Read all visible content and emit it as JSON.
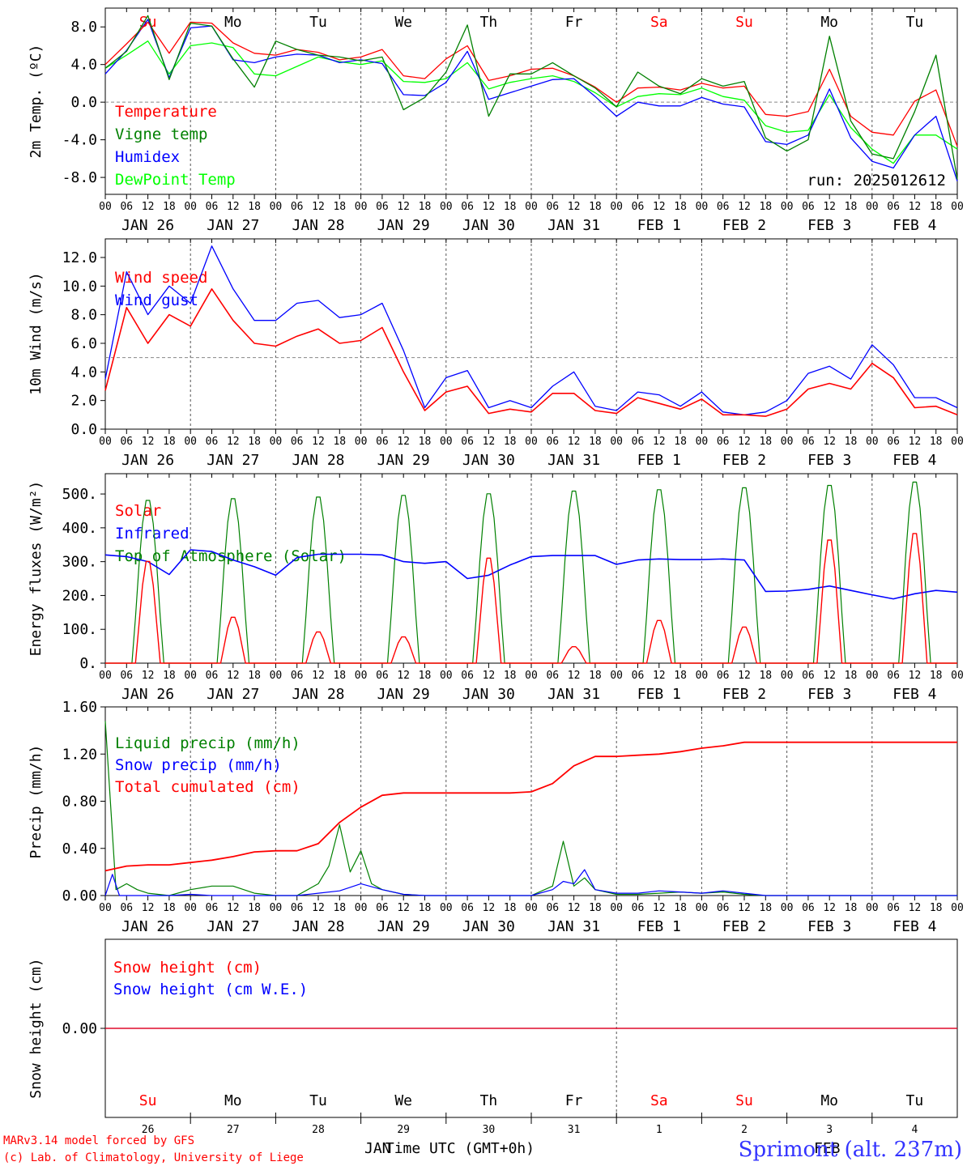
{
  "colors": {
    "red": "#ff0000",
    "green": "#008000",
    "blue": "#0000ff",
    "lime": "#00ff00",
    "grid": "#555555",
    "zero": "#888888"
  },
  "weekdays": [
    {
      "label": "Su",
      "color": "#ff0000"
    },
    {
      "label": "Mo",
      "color": "#000000"
    },
    {
      "label": "Tu",
      "color": "#000000"
    },
    {
      "label": "We",
      "color": "#000000"
    },
    {
      "label": "Th",
      "color": "#000000"
    },
    {
      "label": "Fr",
      "color": "#000000"
    },
    {
      "label": "Sa",
      "color": "#ff0000"
    },
    {
      "label": "Su",
      "color": "#ff0000"
    },
    {
      "label": "Mo",
      "color": "#000000"
    },
    {
      "label": "Tu",
      "color": "#000000"
    }
  ],
  "dates": [
    "JAN 26",
    "JAN 27",
    "JAN 28",
    "JAN 29",
    "JAN 30",
    "JAN 31",
    "FEB  1",
    "FEB  2",
    "FEB  3",
    "FEB  4"
  ],
  "hour_ticks": [
    "00",
    "06",
    "12",
    "18"
  ],
  "bottom": {
    "day_numbers": [
      "26",
      "27",
      "28",
      "29",
      "30",
      "31",
      "1",
      "2",
      "3",
      "4"
    ],
    "month_left": "JAN",
    "month_right": "FEB",
    "xlabel": "Time UTC (GMT+0h)",
    "footer_line1": "MARv3.14 model forced by GFS",
    "footer_line2": "(c) Lab. of Climatology, University of Liege",
    "station": "Sprimont (alt. 237m)"
  },
  "chart_data": [
    {
      "type": "line",
      "ylabel": "2m Temp. (ºC)",
      "ylim": [
        -9.8,
        10.0
      ],
      "yticks": [
        {
          "v": 8,
          "t": "8.0"
        },
        {
          "v": 4,
          "t": "4.0"
        },
        {
          "v": 0,
          "t": "0.0"
        },
        {
          "v": -4,
          "t": "-4.0"
        },
        {
          "v": -8,
          "t": "-8.0"
        }
      ],
      "ref_line": 0,
      "annotation": "run: 2025012612",
      "x_hours": [
        0,
        6,
        12,
        18,
        24,
        30,
        36,
        42,
        48,
        54,
        60,
        66,
        72,
        78,
        84,
        90,
        96,
        102,
        108,
        114,
        120,
        126,
        132,
        138,
        144,
        150,
        156,
        162,
        168,
        174,
        180,
        186,
        192,
        198,
        204,
        210,
        216,
        222,
        228,
        234,
        240
      ],
      "series": [
        {
          "name": "Temperature",
          "color": "#ff0000",
          "values": [
            4.0,
            6.2,
            8.5,
            5.2,
            8.5,
            8.4,
            6.3,
            5.2,
            5.0,
            5.6,
            5.3,
            4.5,
            4.8,
            5.6,
            2.8,
            2.5,
            4.6,
            6.0,
            2.3,
            2.8,
            3.5,
            3.6,
            2.8,
            1.6,
            0.0,
            1.5,
            1.6,
            1.3,
            2.0,
            1.5,
            1.7,
            -1.3,
            -1.5,
            -1.0,
            3.5,
            -1.5,
            -3.2,
            -3.5,
            0.1,
            1.3,
            -4.7
          ]
        },
        {
          "name": "Vigne temp",
          "color": "#008000",
          "values": [
            3.6,
            5.4,
            9.2,
            2.4,
            8.4,
            8.1,
            4.6,
            1.6,
            6.5,
            5.6,
            5.0,
            4.8,
            4.4,
            4.8,
            -0.8,
            0.5,
            3.2,
            8.2,
            -1.5,
            3.0,
            3.0,
            4.2,
            2.8,
            1.5,
            -0.5,
            3.2,
            1.7,
            0.9,
            2.5,
            1.7,
            2.2,
            -3.8,
            -5.2,
            -4.0,
            7.0,
            -2.0,
            -5.5,
            -6.0,
            -1.0,
            5.0,
            -8.2
          ]
        },
        {
          "name": "Humidex",
          "color": "#0000ff",
          "values": [
            3.0,
            5.5,
            8.8,
            2.6,
            7.9,
            8.1,
            4.5,
            4.2,
            4.8,
            5.1,
            5.0,
            4.2,
            4.5,
            4.1,
            0.8,
            0.7,
            2.1,
            5.4,
            0.3,
            1.0,
            1.7,
            2.4,
            2.5,
            0.6,
            -1.5,
            0.0,
            -0.4,
            -0.4,
            0.5,
            -0.2,
            -0.5,
            -4.2,
            -4.5,
            -3.5,
            1.4,
            -3.8,
            -6.3,
            -7.0,
            -3.5,
            -1.5,
            -8.4
          ]
        },
        {
          "name": "DewPoint Temp",
          "color": "#00ff00",
          "values": [
            3.6,
            5.0,
            6.5,
            3.0,
            6.0,
            6.3,
            5.8,
            3.0,
            2.8,
            3.8,
            4.8,
            4.3,
            4.0,
            4.4,
            2.2,
            2.1,
            2.5,
            4.2,
            1.4,
            2.1,
            2.5,
            2.8,
            2.2,
            1.0,
            -0.5,
            0.6,
            0.9,
            0.8,
            1.5,
            0.6,
            0.2,
            -2.5,
            -3.2,
            -3.0,
            0.8,
            -2.7,
            -5.0,
            -6.5,
            -3.5,
            -3.5,
            -5.0
          ]
        }
      ]
    },
    {
      "type": "line",
      "ylabel": "10m Wind (m/s)",
      "ylim": [
        0,
        13.3
      ],
      "yticks": [
        {
          "v": 12,
          "t": "12.0"
        },
        {
          "v": 10,
          "t": "10.0"
        },
        {
          "v": 8,
          "t": "8.0"
        },
        {
          "v": 6,
          "t": "6.0"
        },
        {
          "v": 4,
          "t": "4.0"
        },
        {
          "v": 2,
          "t": "2.0"
        },
        {
          "v": 0,
          "t": "0.0"
        }
      ],
      "ref_line": 5,
      "x_hours": [
        0,
        6,
        12,
        18,
        24,
        30,
        36,
        42,
        48,
        54,
        60,
        66,
        72,
        78,
        84,
        90,
        96,
        102,
        108,
        114,
        120,
        126,
        132,
        138,
        144,
        150,
        156,
        162,
        168,
        174,
        180,
        186,
        192,
        198,
        204,
        210,
        216,
        222,
        228,
        234,
        240
      ],
      "series": [
        {
          "name": "Wind speed",
          "color": "#ff0000",
          "values": [
            2.7,
            8.5,
            6.0,
            8.0,
            7.2,
            9.8,
            7.6,
            6.0,
            5.8,
            6.5,
            7.0,
            6.0,
            6.2,
            7.1,
            4.0,
            1.3,
            2.6,
            3.0,
            1.1,
            1.4,
            1.2,
            2.5,
            2.5,
            1.3,
            1.1,
            2.2,
            1.8,
            1.4,
            2.1,
            1.0,
            1.0,
            0.9,
            1.4,
            2.8,
            3.2,
            2.8,
            4.6,
            3.6,
            1.5,
            1.6,
            1.0
          ]
        },
        {
          "name": "Wind gust",
          "color": "#0000ff",
          "values": [
            3.5,
            11.0,
            8.0,
            10.0,
            8.8,
            12.8,
            9.8,
            7.6,
            7.6,
            8.8,
            9.0,
            7.8,
            8.0,
            8.8,
            5.5,
            1.5,
            3.6,
            4.1,
            1.5,
            2.0,
            1.5,
            3.0,
            4.0,
            1.6,
            1.3,
            2.6,
            2.4,
            1.6,
            2.6,
            1.2,
            1.0,
            1.2,
            2.0,
            3.9,
            4.4,
            3.5,
            5.9,
            4.5,
            2.2,
            2.2,
            1.5
          ]
        }
      ]
    },
    {
      "type": "line",
      "ylabel": "Energy fluxes (W/m²)",
      "ylim": [
        0,
        560
      ],
      "yticks": [
        {
          "v": 500,
          "t": "500."
        },
        {
          "v": 400,
          "t": "400."
        },
        {
          "v": 300,
          "t": "300."
        },
        {
          "v": 200,
          "t": "200."
        },
        {
          "v": 100,
          "t": "100."
        },
        {
          "v": 0,
          "t": "0."
        }
      ],
      "tod_peaks": [
        490,
        495,
        500,
        505,
        510,
        518,
        522,
        528,
        535,
        545
      ],
      "solar_peaks": [
        310,
        140,
        95,
        80,
        320,
        50,
        130,
        110,
        375,
        395
      ],
      "series": [
        {
          "name": "Solar",
          "color": "#ff0000"
        },
        {
          "name": "Infrared",
          "color": "#0000ff",
          "x_hours": [
            0,
            6,
            12,
            18,
            24,
            30,
            36,
            42,
            48,
            54,
            60,
            66,
            72,
            78,
            84,
            90,
            96,
            102,
            108,
            114,
            120,
            126,
            132,
            138,
            144,
            150,
            156,
            162,
            168,
            174,
            180,
            186,
            192,
            198,
            204,
            210,
            216,
            222,
            228,
            234,
            240
          ],
          "values": [
            320,
            315,
            300,
            262,
            335,
            330,
            305,
            285,
            260,
            312,
            322,
            322,
            322,
            320,
            300,
            295,
            300,
            250,
            260,
            290,
            315,
            318,
            318,
            318,
            292,
            305,
            308,
            306,
            306,
            308,
            305,
            212,
            213,
            218,
            228,
            215,
            202,
            190,
            205,
            215,
            210
          ]
        },
        {
          "name": "Top of Atmosphere (Solar)",
          "color": "#008000"
        }
      ]
    },
    {
      "type": "line",
      "ylabel": "Precip (mm/h)",
      "ylim": [
        0,
        1.6
      ],
      "yticks": [
        {
          "v": 1.6,
          "t": "1.60"
        },
        {
          "v": 1.2,
          "t": "1.20"
        },
        {
          "v": 0.8,
          "t": "0.80"
        },
        {
          "v": 0.4,
          "t": "0.40"
        },
        {
          "v": 0,
          "t": "0.00"
        }
      ],
      "series": [
        {
          "name": "Liquid precip (mm/h)",
          "color": "#008000",
          "x_hours": [
            0,
            3,
            6,
            9,
            12,
            18,
            24,
            30,
            36,
            42,
            48,
            54,
            60,
            63,
            66,
            69,
            72,
            75,
            78,
            84,
            90,
            96,
            102,
            108,
            114,
            120,
            126,
            129,
            132,
            135,
            138,
            144,
            150,
            156,
            162,
            168,
            174,
            180,
            186,
            192,
            198,
            204,
            210,
            216,
            222,
            228,
            234,
            240
          ],
          "values": [
            1.48,
            0.05,
            0.1,
            0.05,
            0.02,
            0.0,
            0.05,
            0.08,
            0.08,
            0.02,
            0.0,
            0.0,
            0.1,
            0.25,
            0.6,
            0.2,
            0.38,
            0.1,
            0.05,
            0.01,
            0.0,
            0.0,
            0.0,
            0.0,
            0.0,
            0.0,
            0.08,
            0.46,
            0.08,
            0.15,
            0.05,
            0.01,
            0.01,
            0.02,
            0.03,
            0.02,
            0.03,
            0.01,
            0.0,
            0.0,
            0.0,
            0.0,
            0.0,
            0.0,
            0.0,
            0.0,
            0.0,
            0.0
          ]
        },
        {
          "name": "Snow precip (mm/h)",
          "color": "#0000ff",
          "x_hours": [
            0,
            2,
            4,
            6,
            12,
            18,
            24,
            30,
            36,
            42,
            48,
            54,
            60,
            66,
            72,
            78,
            84,
            90,
            96,
            102,
            108,
            114,
            120,
            126,
            129,
            132,
            135,
            138,
            144,
            150,
            156,
            162,
            168,
            174,
            180,
            186,
            192,
            198,
            204,
            210,
            216,
            222,
            228,
            234,
            240
          ],
          "values": [
            0.0,
            0.18,
            0.0,
            0.0,
            0.0,
            0.0,
            0.01,
            0.0,
            0.0,
            0.0,
            0.0,
            0.0,
            0.02,
            0.04,
            0.1,
            0.05,
            0.01,
            0.0,
            0.0,
            0.0,
            0.0,
            0.0,
            0.0,
            0.05,
            0.12,
            0.1,
            0.22,
            0.05,
            0.02,
            0.02,
            0.04,
            0.03,
            0.02,
            0.04,
            0.02,
            0.0,
            0.0,
            0.0,
            0.0,
            0.0,
            0.0,
            0.0,
            0.0,
            0.0,
            0.0
          ]
        },
        {
          "name": "Total cumulated (cm)",
          "color": "#ff0000",
          "x_hours": [
            0,
            6,
            12,
            18,
            24,
            30,
            36,
            42,
            48,
            54,
            60,
            66,
            72,
            78,
            84,
            90,
            96,
            102,
            108,
            114,
            120,
            126,
            132,
            138,
            144,
            150,
            156,
            162,
            168,
            174,
            180,
            186,
            192,
            198,
            204,
            210,
            216,
            222,
            228,
            234,
            240
          ],
          "values": [
            0.21,
            0.25,
            0.26,
            0.26,
            0.28,
            0.3,
            0.33,
            0.37,
            0.38,
            0.38,
            0.44,
            0.62,
            0.75,
            0.85,
            0.87,
            0.87,
            0.87,
            0.87,
            0.87,
            0.87,
            0.88,
            0.95,
            1.1,
            1.18,
            1.18,
            1.19,
            1.2,
            1.22,
            1.25,
            1.27,
            1.3,
            1.3,
            1.3,
            1.3,
            1.3,
            1.3,
            1.3,
            1.3,
            1.3,
            1.3,
            1.3
          ]
        }
      ]
    },
    {
      "type": "line",
      "ylabel": "Snow height (cm)",
      "ylim": [
        -1,
        1
      ],
      "yticks": [
        {
          "v": 0,
          "t": "0.00"
        }
      ],
      "x_hours": [
        0,
        240
      ],
      "series": [
        {
          "name": "Snow height (cm)",
          "color": "#ff0000",
          "values": [
            0,
            0
          ]
        },
        {
          "name": "Snow height (cm W.E.)",
          "color": "#0000ff",
          "values": [
            0,
            0
          ]
        }
      ]
    }
  ]
}
